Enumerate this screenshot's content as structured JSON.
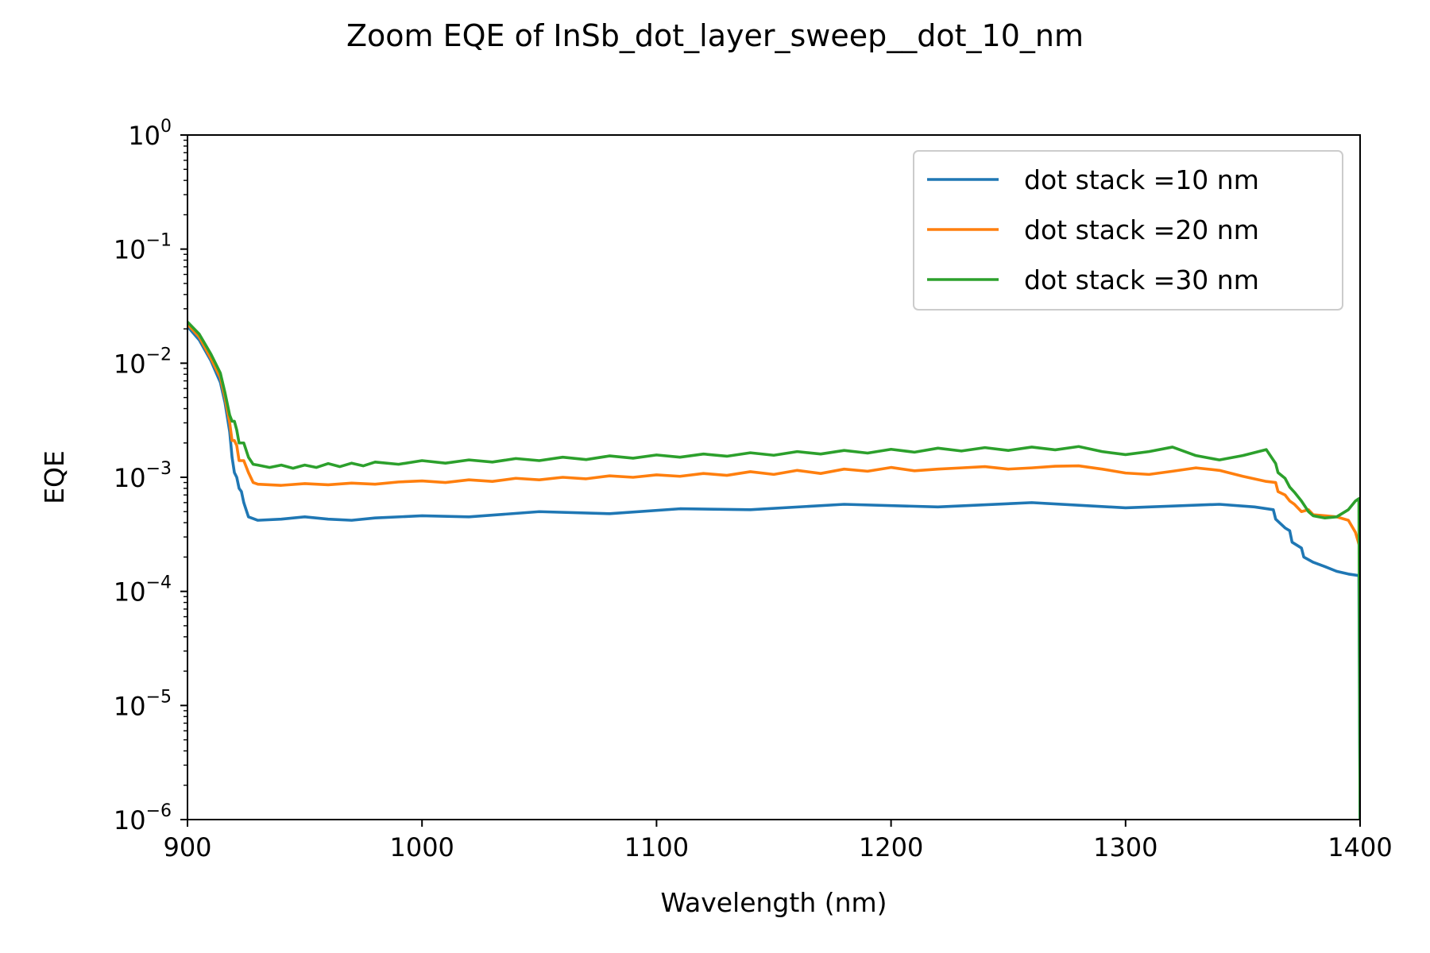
{
  "chart_data": {
    "type": "line",
    "title": "Zoom EQE of InSb_dot_layer_sweep__dot_10_nm",
    "xlabel": "Wavelength (nm)",
    "ylabel": "EQE",
    "xlim": [
      900,
      1400
    ],
    "ylim": [
      1e-06,
      1
    ],
    "yscale": "log",
    "grid": false,
    "legend_position": "top-right",
    "x_ticks": [
      900,
      1000,
      1100,
      1200,
      1300,
      1400
    ],
    "x_tick_labels": [
      "900",
      "1000",
      "1100",
      "1200",
      "1300",
      "1400"
    ],
    "y_ticks": [
      {
        "value": 1e-06,
        "base": "10",
        "exp": "−6"
      },
      {
        "value": 1e-05,
        "base": "10",
        "exp": "−5"
      },
      {
        "value": 0.0001,
        "base": "10",
        "exp": "−4"
      },
      {
        "value": 0.001,
        "base": "10",
        "exp": "−3"
      },
      {
        "value": 0.01,
        "base": "10",
        "exp": "−2"
      },
      {
        "value": 0.1,
        "base": "10",
        "exp": "−1"
      },
      {
        "value": 1,
        "base": "10",
        "exp": "0"
      }
    ],
    "series": [
      {
        "name": "dot stack =10 nm",
        "color": "#1f77b4",
        "x": [
          900,
          905,
          910,
          914,
          916,
          918,
          919,
          920,
          921,
          922,
          923,
          924,
          926,
          930,
          940,
          950,
          960,
          970,
          980,
          1000,
          1020,
          1050,
          1080,
          1110,
          1140,
          1180,
          1220,
          1260,
          1300,
          1340,
          1355,
          1363,
          1364,
          1368,
          1370,
          1371,
          1375,
          1376,
          1380,
          1385,
          1390,
          1395,
          1399,
          1399.5,
          1400
        ],
        "y": [
          0.021,
          0.016,
          0.0105,
          0.0068,
          0.0045,
          0.0025,
          0.0015,
          0.0011,
          0.001,
          0.0008,
          0.00075,
          0.0006,
          0.00045,
          0.00042,
          0.00043,
          0.00045,
          0.00043,
          0.00042,
          0.00044,
          0.00046,
          0.00045,
          0.0005,
          0.00048,
          0.00053,
          0.00052,
          0.00058,
          0.00055,
          0.0006,
          0.00054,
          0.00058,
          0.00055,
          0.00052,
          0.00043,
          0.00036,
          0.00034,
          0.00027,
          0.00024,
          0.0002,
          0.00018,
          0.000165,
          0.00015,
          0.000142,
          0.000138,
          0.000137,
          1e-06
        ]
      },
      {
        "name": "dot stack =20 nm",
        "color": "#ff7f0e",
        "x": [
          900,
          905,
          910,
          914,
          916,
          918,
          919,
          920,
          921,
          922,
          924,
          926,
          928,
          930,
          940,
          950,
          960,
          970,
          980,
          990,
          1000,
          1010,
          1020,
          1030,
          1040,
          1050,
          1060,
          1070,
          1080,
          1090,
          1100,
          1110,
          1120,
          1130,
          1140,
          1150,
          1160,
          1170,
          1180,
          1190,
          1200,
          1210,
          1220,
          1230,
          1240,
          1250,
          1260,
          1270,
          1280,
          1290,
          1300,
          1310,
          1320,
          1330,
          1340,
          1350,
          1360,
          1364,
          1365,
          1368,
          1370,
          1372,
          1375,
          1378,
          1380,
          1385,
          1390,
          1395,
          1398,
          1400
        ],
        "y": [
          0.022,
          0.017,
          0.011,
          0.0075,
          0.005,
          0.003,
          0.0021,
          0.0021,
          0.0019,
          0.0014,
          0.0014,
          0.0011,
          0.0009,
          0.00087,
          0.00085,
          0.00088,
          0.00086,
          0.00089,
          0.00087,
          0.00091,
          0.00093,
          0.0009,
          0.00095,
          0.00092,
          0.00098,
          0.00095,
          0.001,
          0.00097,
          0.00103,
          0.001,
          0.00105,
          0.00102,
          0.00108,
          0.00104,
          0.00112,
          0.00106,
          0.00115,
          0.00108,
          0.00118,
          0.00113,
          0.00122,
          0.00114,
          0.00118,
          0.00121,
          0.00124,
          0.00118,
          0.00121,
          0.00125,
          0.00126,
          0.00118,
          0.00109,
          0.00106,
          0.00113,
          0.00121,
          0.00115,
          0.00102,
          0.00092,
          0.0009,
          0.00075,
          0.0007,
          0.00062,
          0.00058,
          0.0005,
          0.00052,
          0.00047,
          0.00046,
          0.00045,
          0.00042,
          0.00033,
          0.00024
        ]
      },
      {
        "name": "dot stack =30 nm",
        "color": "#2ca02c",
        "x": [
          900,
          905,
          910,
          914,
          916,
          918,
          919,
          920,
          921,
          922,
          924,
          926,
          928,
          930,
          935,
          940,
          945,
          950,
          955,
          960,
          965,
          970,
          975,
          980,
          990,
          1000,
          1010,
          1020,
          1030,
          1040,
          1050,
          1060,
          1070,
          1080,
          1090,
          1100,
          1110,
          1120,
          1130,
          1140,
          1150,
          1160,
          1170,
          1180,
          1190,
          1200,
          1210,
          1220,
          1230,
          1240,
          1250,
          1260,
          1270,
          1280,
          1290,
          1300,
          1310,
          1320,
          1330,
          1340,
          1350,
          1360,
          1364,
          1365,
          1368,
          1370,
          1372,
          1375,
          1378,
          1380,
          1385,
          1390,
          1395,
          1398,
          1399.5,
          1400
        ],
        "y": [
          0.023,
          0.018,
          0.012,
          0.0082,
          0.0055,
          0.0035,
          0.0031,
          0.0031,
          0.0026,
          0.002,
          0.002,
          0.0015,
          0.0013,
          0.00128,
          0.00122,
          0.00128,
          0.0012,
          0.00128,
          0.00122,
          0.00132,
          0.00124,
          0.00133,
          0.00126,
          0.00136,
          0.0013,
          0.0014,
          0.00133,
          0.00142,
          0.00136,
          0.00146,
          0.0014,
          0.0015,
          0.00143,
          0.00154,
          0.00147,
          0.00157,
          0.0015,
          0.0016,
          0.00153,
          0.00164,
          0.00156,
          0.00168,
          0.0016,
          0.00172,
          0.00163,
          0.00176,
          0.00166,
          0.0018,
          0.0017,
          0.00182,
          0.00172,
          0.00184,
          0.00174,
          0.00186,
          0.00168,
          0.00158,
          0.00168,
          0.00184,
          0.00155,
          0.00142,
          0.00155,
          0.00175,
          0.00132,
          0.0011,
          0.00098,
          0.00082,
          0.00074,
          0.00062,
          0.0005,
          0.00046,
          0.00044,
          0.00045,
          0.00052,
          0.00062,
          0.00065,
          1e-06
        ]
      }
    ]
  }
}
